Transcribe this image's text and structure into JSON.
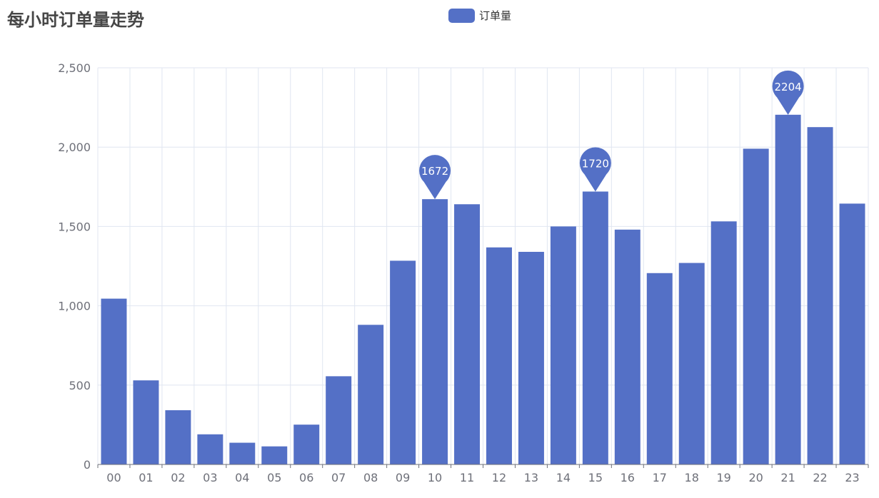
{
  "title": "每小时订单量走势",
  "legend": {
    "label": "订单量"
  },
  "colors": {
    "bar": "#5470c6",
    "grid": "#e0e6f1",
    "axis": "#6e7079"
  },
  "chart_data": {
    "type": "bar",
    "title": "每小时订单量走势",
    "categories": [
      "00",
      "01",
      "02",
      "03",
      "04",
      "05",
      "06",
      "07",
      "08",
      "09",
      "10",
      "11",
      "12",
      "13",
      "14",
      "15",
      "16",
      "17",
      "18",
      "19",
      "20",
      "21",
      "22",
      "23"
    ],
    "series": [
      {
        "name": "订单量",
        "values": [
          1045,
          530,
          342,
          190,
          137,
          114,
          251,
          556,
          880,
          1284,
          1672,
          1640,
          1368,
          1340,
          1500,
          1720,
          1480,
          1206,
          1270,
          1532,
          1990,
          2204,
          2126,
          1644
        ]
      }
    ],
    "y_ticks": [
      "0",
      "500",
      "1,000",
      "1,500",
      "2,000",
      "2,500"
    ],
    "ylim": [
      0,
      2500
    ],
    "grid": true,
    "legend_position": "top-center",
    "mark_points": [
      {
        "category": "10",
        "value": 1672,
        "label": "1672"
      },
      {
        "category": "15",
        "value": 1720,
        "label": "1720"
      },
      {
        "category": "21",
        "value": 2204,
        "label": "2204"
      }
    ]
  }
}
